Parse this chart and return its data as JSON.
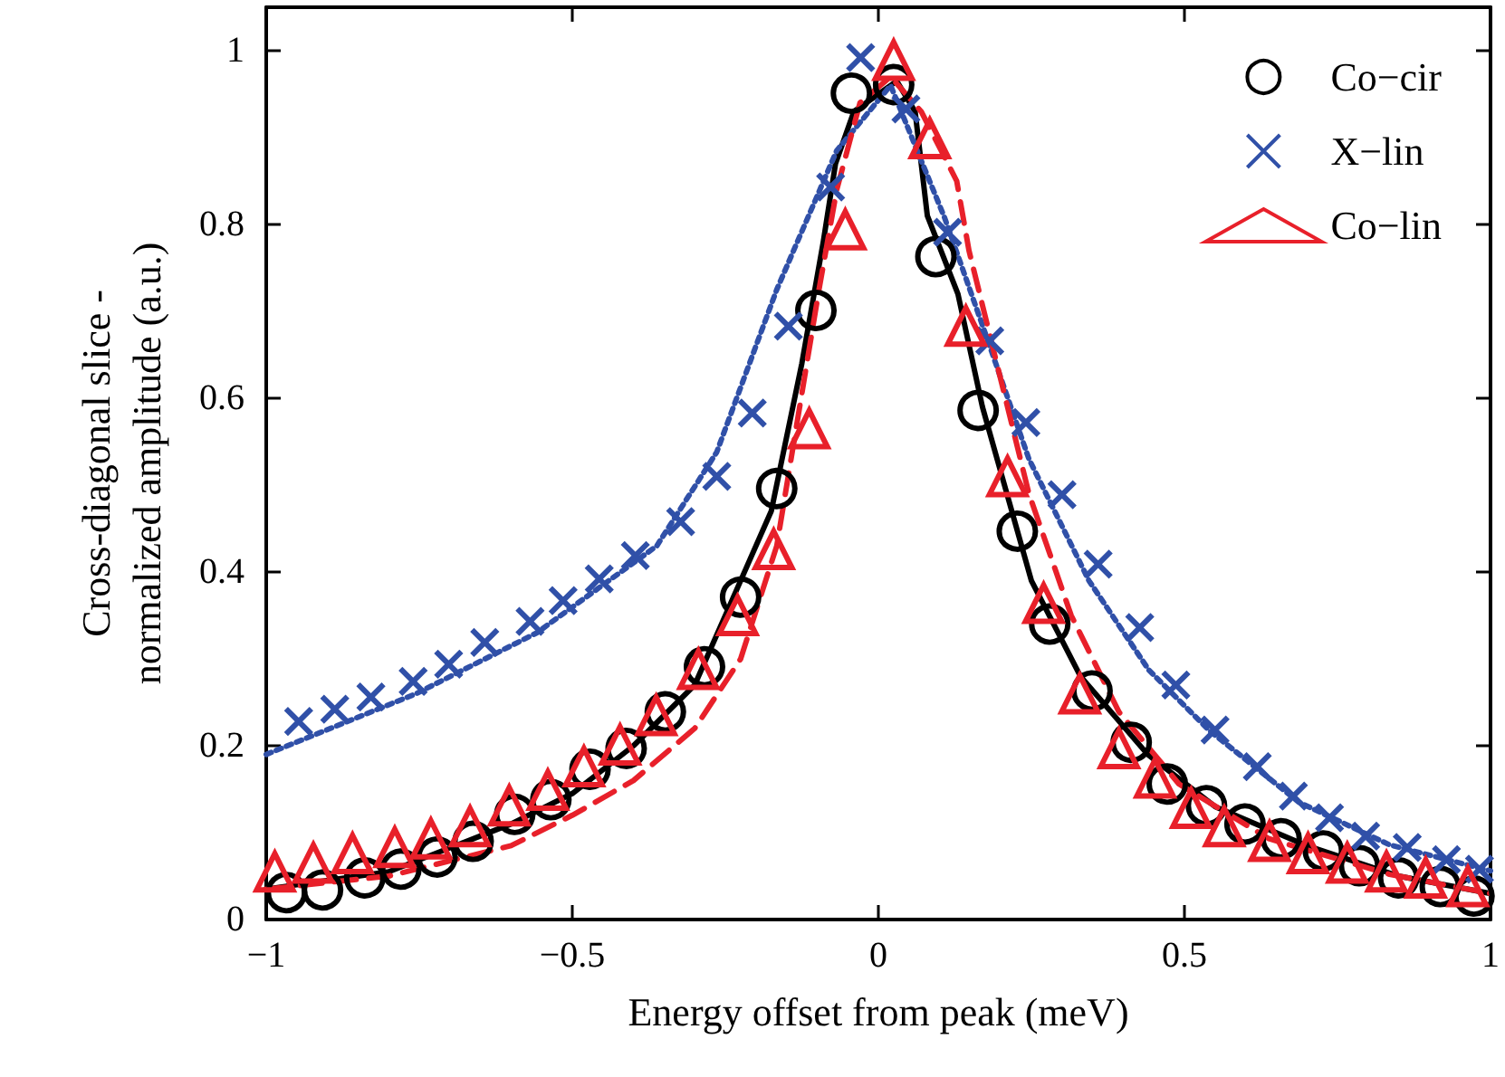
{
  "chart_data": {
    "type": "scatter",
    "xlabel": "Energy offset from peak (meV)",
    "ylabel": "Cross-diagonal slice -\nnormalized amplitude (a.u.)",
    "xlim": [
      -1,
      1
    ],
    "ylim": [
      0,
      1.05
    ],
    "xticks": [
      {
        "value": -1,
        "label": "−1"
      },
      {
        "value": -0.5,
        "label": "−0.5"
      },
      0,
      0.5,
      1
    ],
    "yticks": [
      0,
      0.2,
      0.4,
      0.6,
      0.8,
      1
    ],
    "grid": false,
    "legend": "top right",
    "series": [
      {
        "type": "line",
        "color": "#000000",
        "line_style": "solid",
        "x": [
          -1,
          -0.8,
          -0.6,
          -0.5,
          -0.4,
          -0.3,
          -0.225,
          -0.175,
          -0.125,
          -0.09,
          -0.07,
          -0.04,
          0,
          0.03,
          0.06,
          0.08,
          0.13,
          0.17,
          0.25,
          0.33,
          0.44,
          0.55,
          0.7,
          0.85,
          1
        ],
        "values": [
          0.035,
          0.055,
          0.11,
          0.145,
          0.2,
          0.27,
          0.39,
          0.47,
          0.64,
          0.78,
          0.87,
          0.93,
          0.95,
          0.965,
          0.93,
          0.81,
          0.72,
          0.59,
          0.39,
          0.28,
          0.19,
          0.13,
          0.085,
          0.05,
          0.03
        ]
      },
      {
        "type": "line",
        "color": "#3050a8",
        "line_style": "dotted",
        "x": [
          -1,
          -0.755,
          -0.558,
          -0.362,
          -0.264,
          -0.166,
          -0.068,
          0.02,
          0.108,
          0.177,
          0.246,
          0.344,
          0.442,
          0.54,
          0.687,
          0.835,
          1
        ],
        "values": [
          0.19,
          0.26,
          0.33,
          0.43,
          0.538,
          0.725,
          0.885,
          0.96,
          0.808,
          0.67,
          0.53,
          0.39,
          0.287,
          0.218,
          0.135,
          0.086,
          0.056
        ]
      },
      {
        "type": "line",
        "color": "#e8202a",
        "line_style": "dashed",
        "x": [
          -1,
          -0.8,
          -0.6,
          -0.5,
          -0.4,
          -0.3,
          -0.225,
          -0.166,
          -0.097,
          -0.068,
          -0.03,
          0.02,
          0.07,
          0.128,
          0.148,
          0.197,
          0.246,
          0.315,
          0.393,
          0.491,
          0.638,
          0.835,
          1
        ],
        "values": [
          0.035,
          0.05,
          0.085,
          0.12,
          0.16,
          0.22,
          0.3,
          0.43,
          0.725,
          0.84,
          0.94,
          0.97,
          0.93,
          0.85,
          0.77,
          0.63,
          0.49,
          0.35,
          0.239,
          0.156,
          0.093,
          0.052,
          0.03
        ]
      },
      {
        "name": "Co−cir",
        "color": "#000000",
        "marker": "circle",
        "x": [
          -0.967,
          -0.908,
          -0.839,
          -0.78,
          -0.721,
          -0.662,
          -0.594,
          -0.535,
          -0.471,
          -0.412,
          -0.348,
          -0.284,
          -0.225,
          -0.166,
          -0.102,
          -0.044,
          0.025,
          0.094,
          0.163,
          0.227,
          0.28,
          0.349,
          0.413,
          0.472,
          0.536,
          0.599,
          0.658,
          0.727,
          0.786,
          0.85,
          0.918,
          0.973
        ],
        "values": [
          0.031,
          0.034,
          0.048,
          0.058,
          0.072,
          0.09,
          0.121,
          0.138,
          0.173,
          0.197,
          0.239,
          0.291,
          0.371,
          0.496,
          0.701,
          0.951,
          0.961,
          0.763,
          0.586,
          0.447,
          0.34,
          0.263,
          0.204,
          0.156,
          0.131,
          0.11,
          0.093,
          0.079,
          0.062,
          0.048,
          0.038,
          0.027
        ]
      },
      {
        "name": "X−lin",
        "color": "#3050a8",
        "marker": "cross",
        "x": [
          -0.947,
          -0.888,
          -0.829,
          -0.76,
          -0.702,
          -0.643,
          -0.569,
          -0.515,
          -0.456,
          -0.397,
          -0.323,
          -0.264,
          -0.206,
          -0.147,
          -0.078,
          -0.029,
          0.045,
          0.113,
          0.182,
          0.241,
          0.3,
          0.359,
          0.427,
          0.486,
          0.55,
          0.619,
          0.678,
          0.737,
          0.796,
          0.864,
          0.928,
          0.982
        ],
        "values": [
          0.228,
          0.242,
          0.256,
          0.274,
          0.294,
          0.319,
          0.343,
          0.367,
          0.392,
          0.419,
          0.458,
          0.51,
          0.583,
          0.683,
          0.843,
          0.992,
          0.933,
          0.791,
          0.666,
          0.572,
          0.489,
          0.409,
          0.336,
          0.27,
          0.218,
          0.176,
          0.142,
          0.117,
          0.096,
          0.083,
          0.069,
          0.058
        ]
      },
      {
        "name": "Co−lin",
        "color": "#e8202a",
        "marker": "triangle",
        "x": [
          -0.986,
          -0.923,
          -0.859,
          -0.79,
          -0.731,
          -0.667,
          -0.603,
          -0.54,
          -0.481,
          -0.422,
          -0.363,
          -0.294,
          -0.23,
          -0.171,
          -0.113,
          -0.054,
          0.025,
          0.084,
          0.143,
          0.211,
          0.27,
          0.329,
          0.393,
          0.452,
          0.511,
          0.565,
          0.639,
          0.702,
          0.766,
          0.83,
          0.894,
          0.963
        ],
        "values": [
          0.055,
          0.065,
          0.076,
          0.083,
          0.093,
          0.107,
          0.131,
          0.149,
          0.176,
          0.201,
          0.235,
          0.288,
          0.35,
          0.426,
          0.565,
          0.794,
          0.989,
          0.899,
          0.683,
          0.51,
          0.364,
          0.26,
          0.197,
          0.163,
          0.128,
          0.107,
          0.09,
          0.076,
          0.065,
          0.055,
          0.048,
          0.038
        ]
      }
    ]
  }
}
